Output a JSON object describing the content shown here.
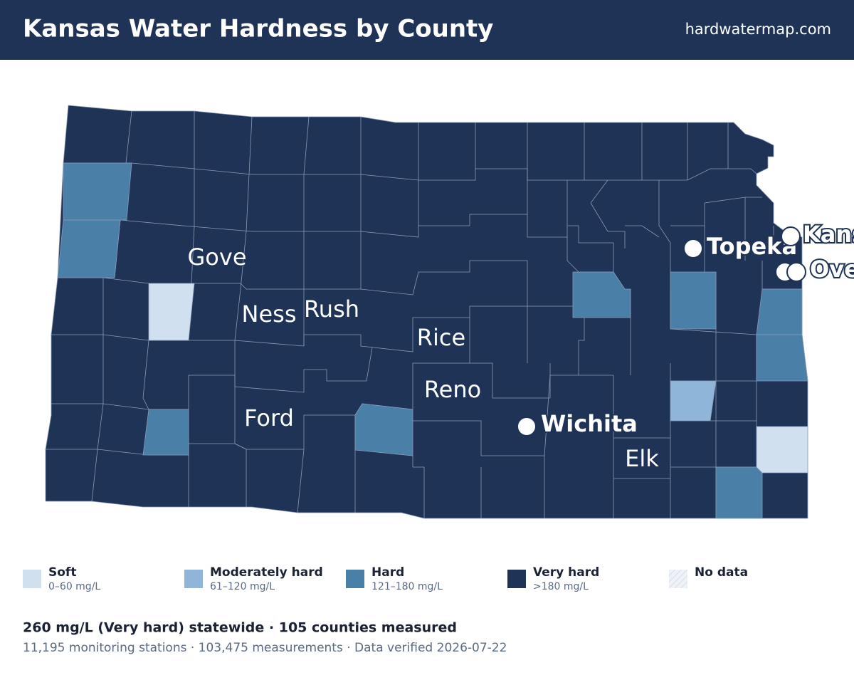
{
  "header": {
    "title": "Kansas Water Hardness by County",
    "site": "hardwatermap.com"
  },
  "map": {
    "county_labels": [
      "Gove",
      "Ness",
      "Rush",
      "Rice",
      "Reno",
      "Ford",
      "Elk"
    ],
    "cities": [
      "Topeka",
      "Kansas City",
      "Wichita",
      "Overland Park"
    ]
  },
  "legend": {
    "items": [
      {
        "label": "Soft",
        "range": "0–60 mg/L"
      },
      {
        "label": "Moderately hard",
        "range": "61–120 mg/L"
      },
      {
        "label": "Hard",
        "range": "121–180 mg/L"
      },
      {
        "label": "Very hard",
        "range": ">180 mg/L"
      },
      {
        "label": "No data"
      }
    ]
  },
  "summary": {
    "headline": "260 mg/L (Very hard) statewide · 105 counties measured",
    "details": "11,195 monitoring stations · 103,475 measurements · Data verified 2026-07-22"
  }
}
